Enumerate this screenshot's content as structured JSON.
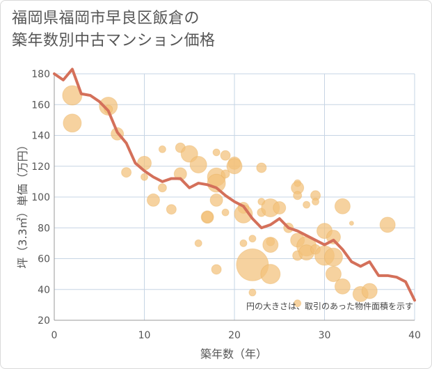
{
  "title": {
    "line1": "福岡県福岡市早良区飯倉の",
    "line2": "築年数別中古マンション価格"
  },
  "chart_data": {
    "type": "scatter",
    "xlabel": "築年数（年）",
    "ylabel": "坪（3.3㎡）単価（万円）",
    "xlim": [
      0,
      40
    ],
    "ylim": [
      20,
      180
    ],
    "xticks": [
      0,
      10,
      20,
      30,
      40
    ],
    "yticks": [
      20,
      40,
      60,
      80,
      100,
      120,
      140,
      160,
      180
    ],
    "grid": true,
    "note": "円の大きさは、取引のあった物件面積を示す",
    "colors": {
      "bubble": "#f3c07a",
      "line": "#d4705a",
      "grid": "#c6d4e4"
    },
    "bubbles": [
      {
        "x": 2,
        "y": 166,
        "size": 28
      },
      {
        "x": 2,
        "y": 148,
        "size": 26
      },
      {
        "x": 6,
        "y": 159,
        "size": 26
      },
      {
        "x": 6,
        "y": 157,
        "size": 12
      },
      {
        "x": 7,
        "y": 141,
        "size": 18
      },
      {
        "x": 8,
        "y": 116,
        "size": 14
      },
      {
        "x": 10,
        "y": 122,
        "size": 20
      },
      {
        "x": 10,
        "y": 113,
        "size": 10
      },
      {
        "x": 11,
        "y": 98,
        "size": 18
      },
      {
        "x": 12,
        "y": 131,
        "size": 10
      },
      {
        "x": 12,
        "y": 106,
        "size": 12
      },
      {
        "x": 13,
        "y": 92,
        "size": 14
      },
      {
        "x": 14,
        "y": 132,
        "size": 14
      },
      {
        "x": 14,
        "y": 115,
        "size": 18
      },
      {
        "x": 15,
        "y": 128,
        "size": 24
      },
      {
        "x": 16,
        "y": 121,
        "size": 24
      },
      {
        "x": 16,
        "y": 70,
        "size": 10
      },
      {
        "x": 17,
        "y": 87,
        "size": 18
      },
      {
        "x": 17,
        "y": 87,
        "size": 16
      },
      {
        "x": 18,
        "y": 129,
        "size": 10
      },
      {
        "x": 18,
        "y": 113,
        "size": 26
      },
      {
        "x": 18,
        "y": 109,
        "size": 26
      },
      {
        "x": 18,
        "y": 98,
        "size": 18
      },
      {
        "x": 18,
        "y": 53,
        "size": 14
      },
      {
        "x": 19,
        "y": 127,
        "size": 14
      },
      {
        "x": 19,
        "y": 115,
        "size": 12
      },
      {
        "x": 19,
        "y": 90,
        "size": 10
      },
      {
        "x": 20,
        "y": 122,
        "size": 18
      },
      {
        "x": 20,
        "y": 120,
        "size": 22
      },
      {
        "x": 21,
        "y": 93,
        "size": 16
      },
      {
        "x": 21,
        "y": 89,
        "size": 26
      },
      {
        "x": 21,
        "y": 70,
        "size": 10
      },
      {
        "x": 22,
        "y": 56,
        "size": 46
      },
      {
        "x": 22,
        "y": 38,
        "size": 10
      },
      {
        "x": 22,
        "y": 73,
        "size": 10
      },
      {
        "x": 23,
        "y": 119,
        "size": 14
      },
      {
        "x": 23,
        "y": 97,
        "size": 10
      },
      {
        "x": 23,
        "y": 90,
        "size": 12
      },
      {
        "x": 24,
        "y": 93,
        "size": 26
      },
      {
        "x": 24,
        "y": 71,
        "size": 12
      },
      {
        "x": 24,
        "y": 69,
        "size": 22
      },
      {
        "x": 24,
        "y": 50,
        "size": 28
      },
      {
        "x": 25,
        "y": 93,
        "size": 18
      },
      {
        "x": 26,
        "y": 80,
        "size": 14
      },
      {
        "x": 27,
        "y": 109,
        "size": 10
      },
      {
        "x": 27,
        "y": 106,
        "size": 18
      },
      {
        "x": 27,
        "y": 101,
        "size": 12
      },
      {
        "x": 27,
        "y": 72,
        "size": 20
      },
      {
        "x": 27,
        "y": 62,
        "size": 14
      },
      {
        "x": 27,
        "y": 31,
        "size": 10
      },
      {
        "x": 28,
        "y": 95,
        "size": 10
      },
      {
        "x": 28,
        "y": 68,
        "size": 28
      },
      {
        "x": 28,
        "y": 64,
        "size": 22
      },
      {
        "x": 29,
        "y": 101,
        "size": 14
      },
      {
        "x": 29,
        "y": 97,
        "size": 10
      },
      {
        "x": 29,
        "y": 66,
        "size": 14
      },
      {
        "x": 30,
        "y": 78,
        "size": 22
      },
      {
        "x": 30,
        "y": 62,
        "size": 28
      },
      {
        "x": 31,
        "y": 74,
        "size": 20
      },
      {
        "x": 31,
        "y": 61,
        "size": 26
      },
      {
        "x": 31,
        "y": 50,
        "size": 22
      },
      {
        "x": 32,
        "y": 94,
        "size": 22
      },
      {
        "x": 32,
        "y": 42,
        "size": 22
      },
      {
        "x": 33,
        "y": 83,
        "size": 6
      },
      {
        "x": 34,
        "y": 37,
        "size": 22
      },
      {
        "x": 35,
        "y": 39,
        "size": 22
      },
      {
        "x": 37,
        "y": 82,
        "size": 22
      }
    ],
    "line": {
      "x": [
        0,
        1,
        2,
        3,
        4,
        5,
        6,
        7,
        8,
        9,
        10,
        11,
        12,
        13,
        14,
        15,
        16,
        17,
        18,
        19,
        20,
        21,
        22,
        23,
        24,
        25,
        26,
        27,
        28,
        29,
        30,
        31,
        32,
        33,
        34,
        35,
        36,
        37,
        38,
        39,
        40
      ],
      "y": [
        180,
        176,
        183,
        167,
        166,
        162,
        156,
        142,
        135,
        122,
        117,
        113,
        110,
        112,
        112,
        106,
        109,
        108,
        106,
        101,
        97,
        94,
        86,
        80,
        82,
        86,
        80,
        78,
        75,
        72,
        69,
        72,
        66,
        58,
        55,
        58,
        49,
        49,
        48,
        45,
        33
      ]
    }
  }
}
